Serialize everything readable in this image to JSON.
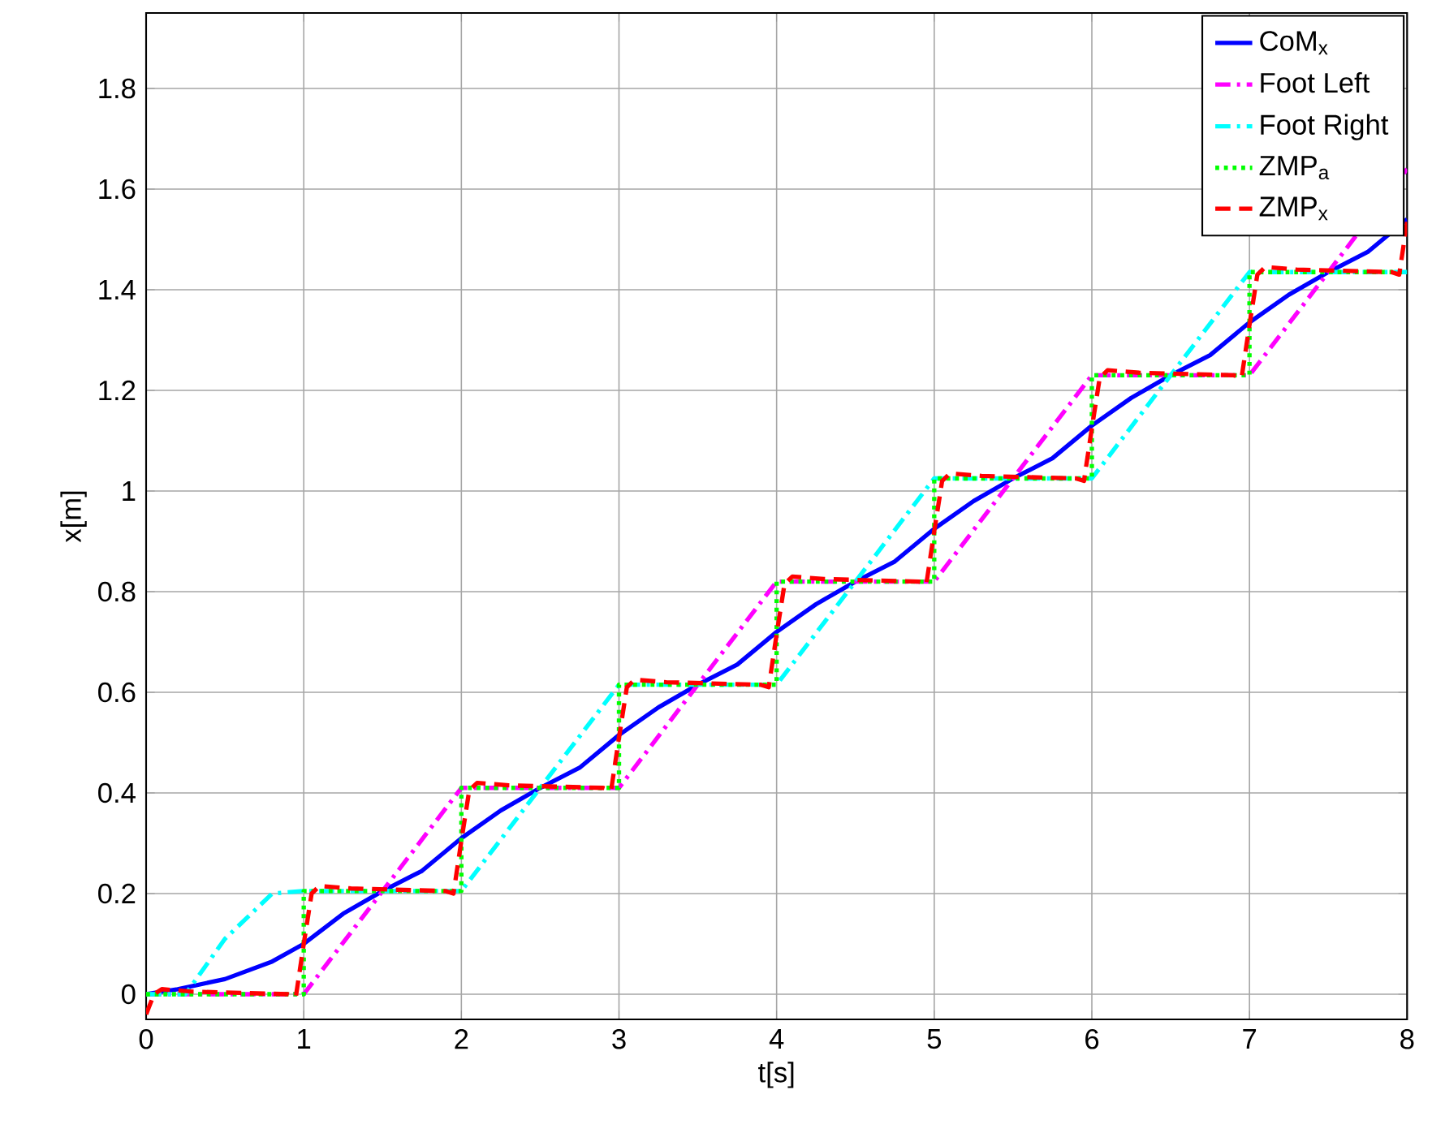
{
  "chart_data": {
    "type": "line",
    "xlabel": "t[s]",
    "ylabel": "x[m]",
    "xlim": [
      0,
      8
    ],
    "ylim": [
      -0.05,
      1.95
    ],
    "xticks": [
      0,
      1,
      2,
      3,
      4,
      5,
      6,
      7,
      8
    ],
    "yticks": [
      0,
      0.2,
      0.4,
      0.6,
      0.8,
      1,
      1.2,
      1.4,
      1.6,
      1.8
    ],
    "grid": true,
    "legend": "top right",
    "marker": "none",
    "series": [
      {
        "name": "CoM$_{x}$",
        "color": "#0000ff",
        "line_style": "solid",
        "x": [
          0,
          0.2,
          0.5,
          0.8,
          1,
          1.25,
          1.5,
          1.75,
          2,
          2.25,
          2.5,
          2.75,
          3,
          3.25,
          3.5,
          3.75,
          4,
          4.25,
          4.5,
          4.75,
          5,
          5.25,
          5.5,
          5.75,
          6,
          6.25,
          6.5,
          6.75,
          7,
          7.25,
          7.5,
          7.75,
          8
        ],
        "values": [
          0,
          0.01,
          0.03,
          0.065,
          0.1,
          0.16,
          0.205,
          0.245,
          0.31,
          0.365,
          0.41,
          0.45,
          0.515,
          0.57,
          0.615,
          0.655,
          0.72,
          0.775,
          0.82,
          0.86,
          0.925,
          0.98,
          1.025,
          1.065,
          1.13,
          1.185,
          1.23,
          1.27,
          1.335,
          1.39,
          1.435,
          1.475,
          1.54
        ]
      },
      {
        "name": "Foot Left",
        "color": "#ff00ff",
        "line_style": "dashdot",
        "x": [
          0,
          1,
          2,
          3,
          4,
          5,
          6,
          7,
          8
        ],
        "values": [
          0,
          0,
          0.41,
          0.41,
          0.82,
          0.82,
          1.23,
          1.23,
          1.64
        ]
      },
      {
        "name": "Foot Right",
        "color": "#00ffff",
        "line_style": "dashdot",
        "x": [
          0,
          0.25,
          0.5,
          0.8,
          1,
          2,
          3,
          4,
          5,
          6,
          7,
          8
        ],
        "values": [
          0,
          0,
          0.11,
          0.2,
          0.205,
          0.205,
          0.615,
          0.615,
          1.025,
          1.025,
          1.435,
          1.435
        ]
      },
      {
        "name": "ZMP$_{a}$",
        "color": "#00ff00",
        "line_style": "dotted",
        "x": [
          0,
          1,
          1,
          2,
          2,
          3,
          3,
          4,
          4,
          5,
          5,
          6,
          6,
          7,
          7,
          8
        ],
        "values": [
          0,
          0,
          0.205,
          0.205,
          0.41,
          0.41,
          0.615,
          0.615,
          0.82,
          0.82,
          1.025,
          1.025,
          1.23,
          1.23,
          1.435,
          1.435
        ]
      },
      {
        "name": "ZMP$_{x}$",
        "color": "#ff0000",
        "line_style": "dashed",
        "x": [
          0,
          0.05,
          0.1,
          0.3,
          0.9,
          0.95,
          1,
          1.05,
          1.1,
          1.3,
          1.9,
          1.95,
          2,
          2.05,
          2.1,
          2.3,
          2.9,
          2.95,
          3,
          3.05,
          3.1,
          3.3,
          3.9,
          3.95,
          4,
          4.05,
          4.1,
          4.3,
          4.9,
          4.95,
          5,
          5.05,
          5.1,
          5.3,
          5.9,
          5.95,
          6,
          6.05,
          6.1,
          6.3,
          6.9,
          6.95,
          7,
          7.05,
          7.1,
          7.3,
          7.9,
          7.95,
          8
        ],
        "values": [
          -0.04,
          0,
          0.01,
          0.005,
          0,
          -0.005,
          0.1,
          0.2,
          0.215,
          0.21,
          0.205,
          0.2,
          0.305,
          0.405,
          0.42,
          0.415,
          0.41,
          0.405,
          0.51,
          0.61,
          0.625,
          0.62,
          0.615,
          0.61,
          0.715,
          0.815,
          0.83,
          0.825,
          0.82,
          0.815,
          0.92,
          1.02,
          1.035,
          1.03,
          1.025,
          1.02,
          1.125,
          1.225,
          1.24,
          1.235,
          1.23,
          1.225,
          1.33,
          1.43,
          1.445,
          1.44,
          1.435,
          1.43,
          1.535
        ]
      }
    ]
  }
}
